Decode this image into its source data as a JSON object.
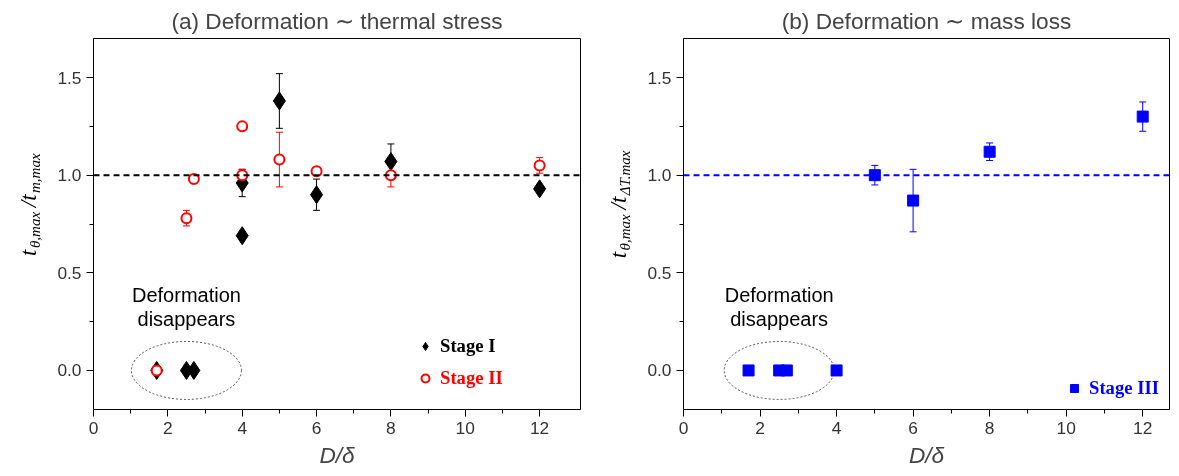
{
  "chart_data": [
    {
      "type": "scatter",
      "title": "(a) Deformation ∼ thermal stress",
      "xlabel": "D/δ",
      "ylabel": "t$_{θ,max}$/t$_{m,max}$",
      "xlim": [
        0,
        13.1
      ],
      "ylim": [
        -0.2,
        1.7
      ],
      "xticks": [
        0,
        {
          "value": 1,
          "label": null
        },
        2,
        {
          "value": 3,
          "label": null
        },
        4,
        {
          "value": 5,
          "label": null
        },
        6,
        {
          "value": 7,
          "label": null
        },
        8,
        {
          "value": 9,
          "label": null
        },
        10,
        {
          "value": 11,
          "label": null
        },
        12
      ],
      "yticks": [
        {
          "value": 0,
          "label": "0.0"
        },
        {
          "value": 0.25,
          "label": null
        },
        {
          "value": 0.5,
          "label": "0.5"
        },
        {
          "value": 0.75,
          "label": null
        },
        {
          "value": 1,
          "label": "1.0"
        },
        {
          "value": 1.25,
          "label": null
        },
        {
          "value": 1.5,
          "label": "1.5"
        }
      ],
      "series": [
        {
          "name": "Stage I",
          "color": "#000000",
          "marker": "diamond",
          "x": [
            1.7,
            2.5,
            2.7,
            4,
            4,
            5,
            6,
            8,
            12
          ],
          "values": [
            0,
            0,
            0,
            0.69,
            0.96,
            1.38,
            0.9,
            1.07,
            0.93
          ],
          "errors": [
            null,
            null,
            null,
            null,
            0.07,
            0.14,
            0.08,
            0.09,
            0.02
          ]
        },
        {
          "name": "Stage II",
          "color": "#ff0000",
          "marker": "circle",
          "x": [
            1.7,
            2.5,
            2.7,
            4,
            4,
            5,
            6,
            8,
            12
          ],
          "values": [
            0,
            0.78,
            0.98,
            1.25,
            1.0,
            1.08,
            1.02,
            1.0,
            1.05
          ],
          "errors": [
            null,
            0.04,
            0.02,
            0.01,
            0.03,
            0.14,
            0.01,
            0.06,
            0.04
          ]
        }
      ],
      "ref_lines": [
        {
          "axis": "y",
          "value": 1.0,
          "color": "#000000",
          "line_style": "dashed"
        }
      ],
      "annotations": [
        {
          "text": "Deformation disappears",
          "x": 2.5,
          "y": 0
        }
      ],
      "legend": "bottom right",
      "grid": false
    },
    {
      "type": "scatter",
      "title": "(b) Deformation ∼ mass loss",
      "xlabel": "D/δ",
      "ylabel": "t$_{θ,max}$/t$_{ΔT.max}$",
      "xlim": [
        0,
        12.7
      ],
      "ylim": [
        -0.2,
        1.7
      ],
      "xticks": [
        0,
        {
          "value": 1,
          "label": null
        },
        2,
        {
          "value": 3,
          "label": null
        },
        4,
        {
          "value": 5,
          "label": null
        },
        6,
        {
          "value": 7,
          "label": null
        },
        8,
        {
          "value": 9,
          "label": null
        },
        10,
        {
          "value": 11,
          "label": null
        },
        12
      ],
      "yticks": [
        {
          "value": 0,
          "label": "0.0"
        },
        {
          "value": 0.25,
          "label": null
        },
        {
          "value": 0.5,
          "label": "0.5"
        },
        {
          "value": 0.75,
          "label": null
        },
        {
          "value": 1,
          "label": "1.0"
        },
        {
          "value": 1.25,
          "label": null
        },
        {
          "value": 1.5,
          "label": "1.5"
        }
      ],
      "series": [
        {
          "name": "Stage III",
          "color": "#0000ff",
          "marker": "square",
          "x": [
            1.7,
            2.5,
            2.7,
            4,
            5,
            6,
            8,
            12
          ],
          "values": [
            0,
            0,
            0,
            0,
            1.0,
            0.87,
            1.12,
            1.3
          ],
          "errors": [
            null,
            null,
            null,
            null,
            0.05,
            0.16,
            0.045,
            0.075
          ]
        }
      ],
      "ref_lines": [
        {
          "axis": "y",
          "value": 1.0,
          "color": "#0000ff",
          "line_style": "dashed"
        }
      ],
      "annotations": [
        {
          "text": "Deformation disappears",
          "x": 2.5,
          "y": 0
        }
      ],
      "legend": "bottom right",
      "grid": false
    }
  ]
}
